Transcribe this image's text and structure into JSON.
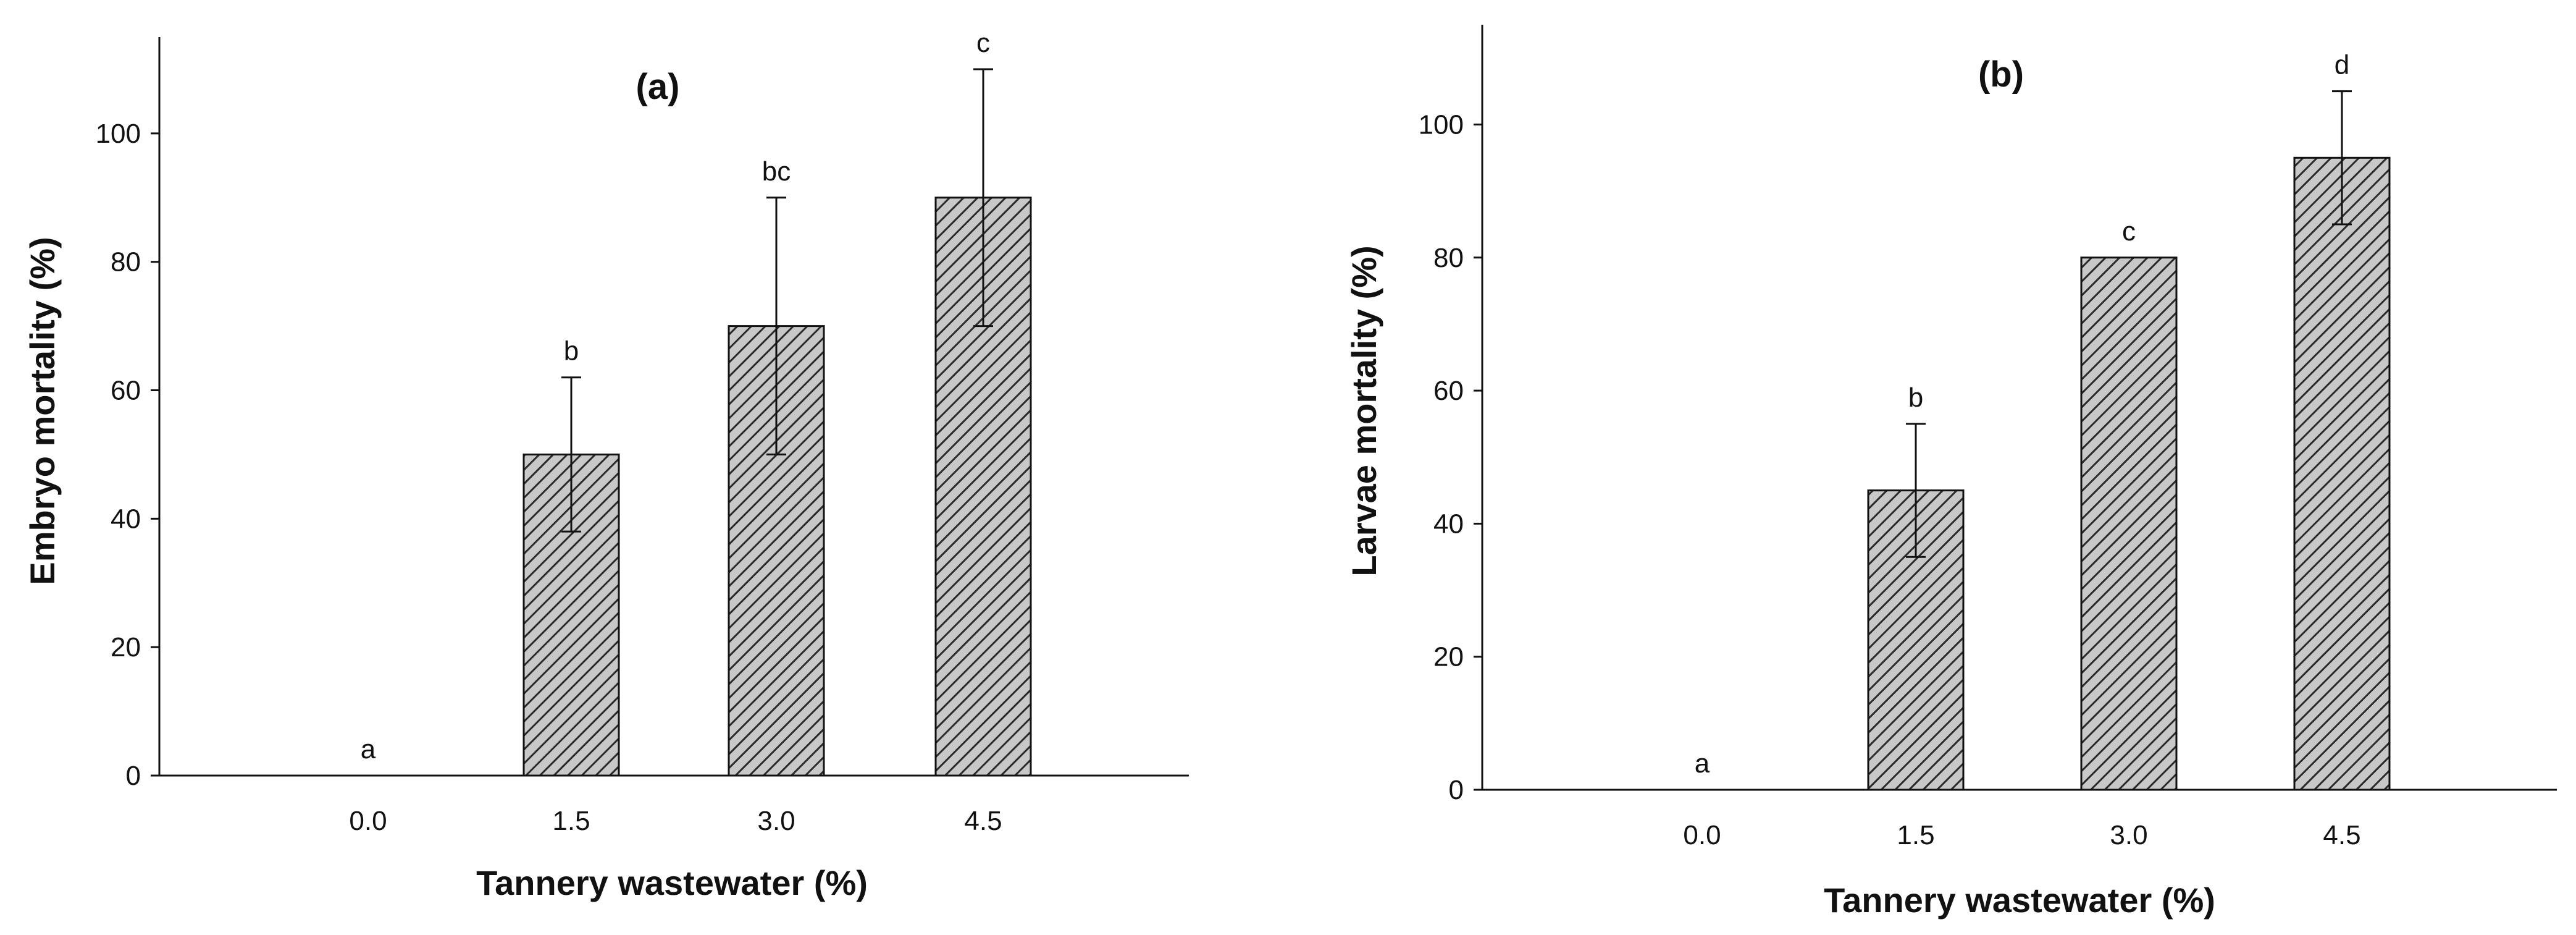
{
  "chart_data": [
    {
      "type": "bar",
      "title": "(a)",
      "xlabel": "Tannery wastewater (%)",
      "ylabel": "Embryo mortality (%)",
      "categories": [
        "0.0",
        "1.5",
        "3.0",
        "4.5"
      ],
      "values": [
        0,
        50,
        70,
        90
      ],
      "errors": [
        0,
        12,
        20,
        20
      ],
      "significance": [
        "a",
        "b",
        "bc",
        "c"
      ],
      "yticks": [
        "0",
        "20",
        "40",
        "60",
        "80",
        "100"
      ],
      "ylim": [
        0,
        115
      ],
      "bar_fill": "#c8c8c8",
      "hatch": "diagonal",
      "grid": false
    },
    {
      "type": "bar",
      "title": "(b)",
      "xlabel": "Tannery wastewater (%)",
      "ylabel": "Larvae mortality (%)",
      "categories": [
        "0.0",
        "1.5",
        "3.0",
        "4.5"
      ],
      "values": [
        0,
        45,
        80,
        95
      ],
      "errors": [
        0,
        10,
        0,
        10
      ],
      "significance": [
        "a",
        "b",
        "c",
        "d"
      ],
      "yticks": [
        "0",
        "20",
        "40",
        "60",
        "80",
        "100"
      ],
      "ylim": [
        0,
        115
      ],
      "bar_fill": "#c8c8c8",
      "hatch": "diagonal",
      "grid": false
    }
  ]
}
